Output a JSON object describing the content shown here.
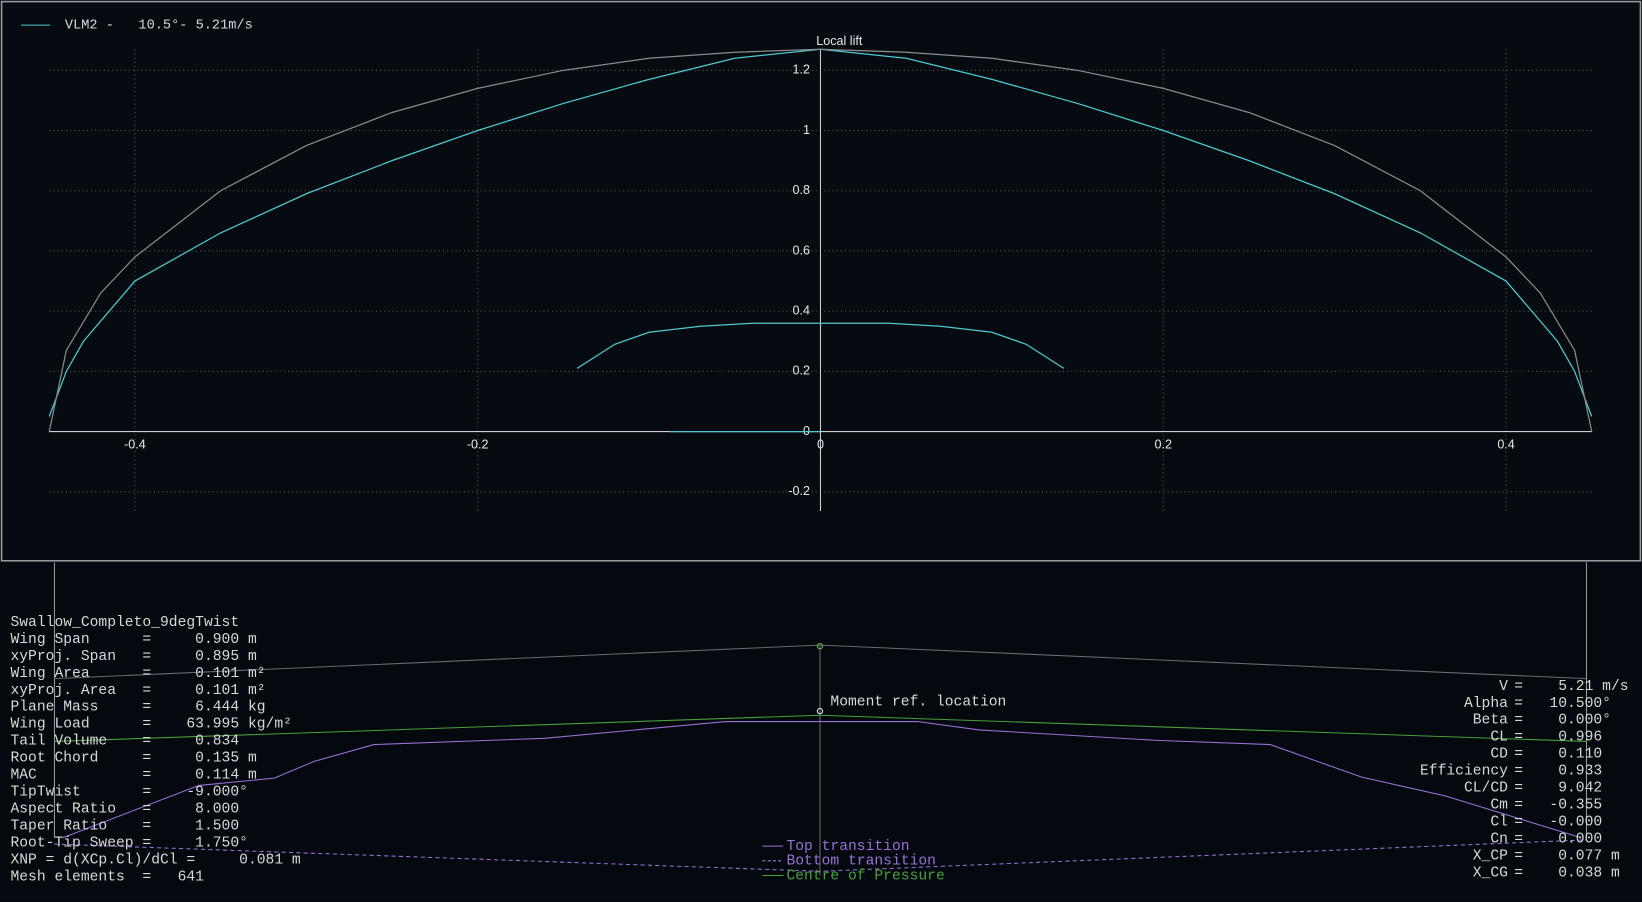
{
  "chart_data": {
    "type": "line",
    "y_label": "Local lift",
    "xlim": [
      -0.45,
      0.45
    ],
    "ylim": [
      -0.264,
      1.27
    ],
    "xticks": [
      -0.4,
      -0.2,
      0,
      0.2,
      0.4
    ],
    "yticks": [
      -0.2,
      0,
      0.2,
      0.4,
      0.6,
      0.8,
      1.0,
      1.2
    ],
    "grid": true,
    "legend": "top-left",
    "series": [
      {
        "name": "VLM2 -   10.5°- 5.21m/s",
        "color": "#4fc8d0",
        "x": [
          -0.45,
          -0.44,
          -0.43,
          -0.4,
          -0.35,
          -0.3,
          -0.25,
          -0.2,
          -0.15,
          -0.1,
          -0.05,
          0,
          0.05,
          0.1,
          0.15,
          0.2,
          0.25,
          0.3,
          0.35,
          0.4,
          0.43,
          0.44,
          0.45
        ],
        "values": [
          0.05,
          0.2,
          0.3,
          0.5,
          0.66,
          0.79,
          0.9,
          1.0,
          1.09,
          1.17,
          1.24,
          1.27,
          1.24,
          1.17,
          1.09,
          1.0,
          0.9,
          0.79,
          0.66,
          0.5,
          0.3,
          0.2,
          0.05
        ]
      },
      {
        "color": "#8a8a8a",
        "x": [
          -0.45,
          -0.44,
          -0.42,
          -0.4,
          -0.35,
          -0.3,
          -0.25,
          -0.2,
          -0.15,
          -0.1,
          -0.05,
          0,
          0.05,
          0.1,
          0.15,
          0.2,
          0.25,
          0.3,
          0.35,
          0.4,
          0.42,
          0.44,
          0.45
        ],
        "values": [
          0,
          0.27,
          0.46,
          0.58,
          0.8,
          0.95,
          1.06,
          1.14,
          1.2,
          1.24,
          1.26,
          1.27,
          1.26,
          1.24,
          1.2,
          1.14,
          1.06,
          0.95,
          0.8,
          0.58,
          0.46,
          0.27,
          0
        ]
      },
      {
        "color": "#4fc8d0",
        "x": [
          -0.142,
          -0.12,
          -0.1,
          -0.07,
          -0.04,
          0,
          0.04,
          0.07,
          0.1,
          0.12,
          0.142
        ],
        "values": [
          0.21,
          0.29,
          0.33,
          0.35,
          0.36,
          0.36,
          0.36,
          0.35,
          0.33,
          0.29,
          0.21
        ]
      },
      {
        "color": "#4fc8d0",
        "x": [
          -0.088,
          0
        ],
        "values": [
          0,
          0
        ]
      }
    ]
  },
  "plane_info": {
    "name": "Swallow_Completo_9degTwist",
    "lines": [
      "Wing Span      =     0.900 m",
      "xyProj. Span   =     0.895 m",
      "Wing Area      =     0.101 m²",
      "xyProj. Area   =     0.101 m²",
      "Plane Mass     =     6.444 kg",
      "Wing Load      =    63.995 kg/m²",
      "Tail Volume    =     0.834",
      "Root Chord     =     0.135 m",
      "MAC            =     0.114 m",
      "TipTwist       =    -9.000°",
      "Aspect Ratio   =     8.000",
      "Taper Ratio    =     1.500",
      "Root-Tip Sweep =     1.750°",
      "XNP = d(XCp.Cl)/dCl =     0.081 m",
      "Mesh elements  =   641"
    ]
  },
  "flight_info": {
    "lines": [
      [
        "V",
        "=    5.21 m/s"
      ],
      [
        "Alpha",
        "=   10.500°"
      ],
      [
        "Beta",
        "=    0.000°"
      ],
      [
        "CL",
        "=    0.996"
      ],
      [
        "CD",
        "=    0.110"
      ],
      [
        "Efficiency",
        "=    0.933"
      ],
      [
        "CL/CD",
        "=    9.042"
      ],
      [
        "Cm",
        "=   -0.355"
      ],
      [
        "Cl",
        "=   -0.000"
      ],
      [
        "Cn",
        "=    0.000"
      ],
      [
        "X_CP",
        "=    0.077 m"
      ],
      [
        "X_CG",
        "=    0.038 m"
      ]
    ]
  },
  "view3d": {
    "moment_ref_label": "Moment ref. location",
    "legend": [
      "Top transition",
      "Bottom transition",
      "Centre of Pressure"
    ]
  }
}
